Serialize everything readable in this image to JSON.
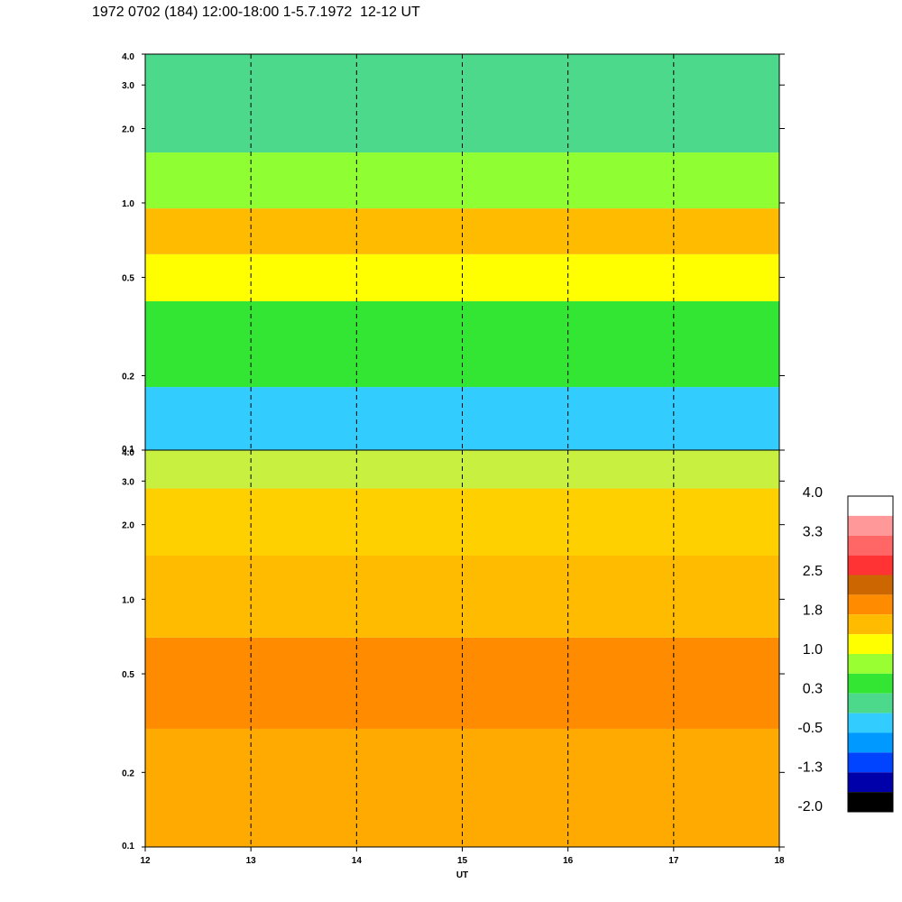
{
  "title": "1972 0702 (184) 12:00-18:00 1-5.7.1972  12-12 UT",
  "chart_data": {
    "type": "heatmap",
    "panels": [
      {
        "name": "",
        "y_scale": "log",
        "ylim": [
          0.1,
          4.0
        ],
        "y_ticks": [
          "0.1",
          "0.2",
          "0.5",
          "1.0",
          "2.0",
          "3.0",
          "4.0"
        ],
        "bands": [
          {
            "ymin": 0.1,
            "ymax": 0.18,
            "color": "#33ccff"
          },
          {
            "ymin": 0.18,
            "ymax": 0.4,
            "color": "#33e633"
          },
          {
            "ymin": 0.4,
            "ymax": 0.62,
            "color": "#ffff00"
          },
          {
            "ymin": 0.62,
            "ymax": 0.95,
            "color": "#ffbb00"
          },
          {
            "ymin": 0.95,
            "ymax": 1.6,
            "color": "#8fff33"
          },
          {
            "ymin": 1.6,
            "ymax": 4.0,
            "color": "#4dd98c"
          }
        ]
      },
      {
        "name": "",
        "y_scale": "log",
        "ylim": [
          0.1,
          4.0
        ],
        "y_ticks": [
          "0.1",
          "0.2",
          "0.5",
          "1.0",
          "2.0",
          "3.0",
          "4.0"
        ],
        "bands": [
          {
            "ymin": 0.1,
            "ymax": 0.3,
            "color": "#ffaa00"
          },
          {
            "ymin": 0.3,
            "ymax": 0.7,
            "color": "#ff8c00"
          },
          {
            "ymin": 0.7,
            "ymax": 1.5,
            "color": "#ffbb00"
          },
          {
            "ymin": 1.5,
            "ymax": 2.8,
            "color": "#ffd000"
          },
          {
            "ymin": 2.8,
            "ymax": 4.0,
            "color": "#c8f040"
          }
        ]
      }
    ],
    "x_ticks": [
      "12",
      "13",
      "14",
      "15",
      "16",
      "17",
      "18"
    ],
    "xlim": [
      12,
      18
    ],
    "dashed_hours": [
      13,
      14,
      15,
      16,
      17
    ],
    "xlabel": "UT",
    "colorbar": {
      "labels": [
        "4.0",
        "3.3",
        "2.5",
        "1.8",
        "1.0",
        "0.3",
        "-0.5",
        "-1.3",
        "-2.0"
      ],
      "colors": [
        "#ffffff",
        "#ff9999",
        "#ff6666",
        "#ff3333",
        "#cc6600",
        "#ff8c00",
        "#ffbb00",
        "#ffff00",
        "#99ff33",
        "#33e633",
        "#4dd98c",
        "#33ccff",
        "#0099ff",
        "#0044ff",
        "#0000aa",
        "#000000"
      ]
    }
  }
}
